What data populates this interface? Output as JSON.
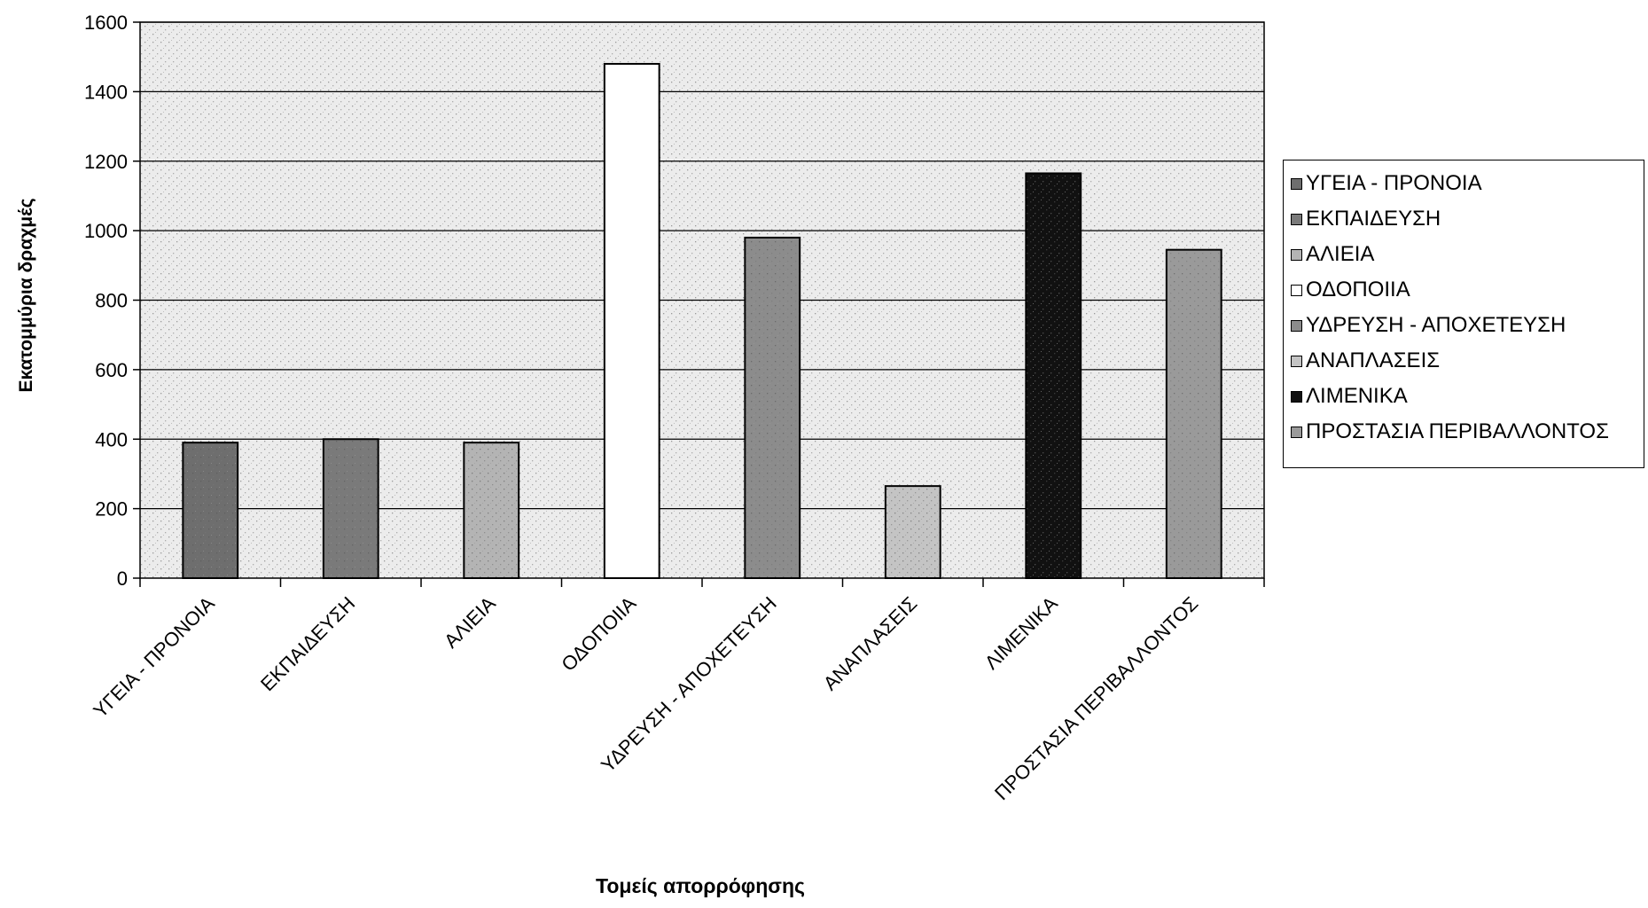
{
  "chart_data": {
    "type": "bar",
    "title": "",
    "xlabel": "Τομείς απορρόφησης",
    "ylabel": "Εκατομμύρια δραχμές",
    "ylim": [
      0,
      1600
    ],
    "yticks": [
      0,
      200,
      400,
      600,
      800,
      1000,
      1200,
      1400,
      1600
    ],
    "categories": [
      "ΥΓΕΙΑ - ΠΡΟΝΟΙΑ",
      "ΕΚΠΑΙΔΕΥΣΗ",
      "ΑΛΙΕΙΑ",
      "ΟΔΟΠΟΙΙΑ",
      "ΥΔΡΕΥΣΗ - ΑΠΟΧΕΤΕΥΣΗ",
      "ΑΝΑΠΛΑΣΕΙΣ",
      "ΛΙΜΕΝΙΚΑ",
      "ΠΡΟΣΤΑΣΙΑ ΠΕΡΙΒΑΛΛΟΝΤΟΣ"
    ],
    "values": [
      390,
      400,
      390,
      1480,
      980,
      265,
      1165,
      945
    ],
    "colors": [
      "#6e6e6e",
      "#7a7a7a",
      "#b4b4b4",
      "#ffffff",
      "#8c8c8c",
      "#c4c4c4",
      "#111111",
      "#9a9a9a"
    ],
    "grid": true,
    "legend_position": "right",
    "plot_background": "#ececec"
  }
}
